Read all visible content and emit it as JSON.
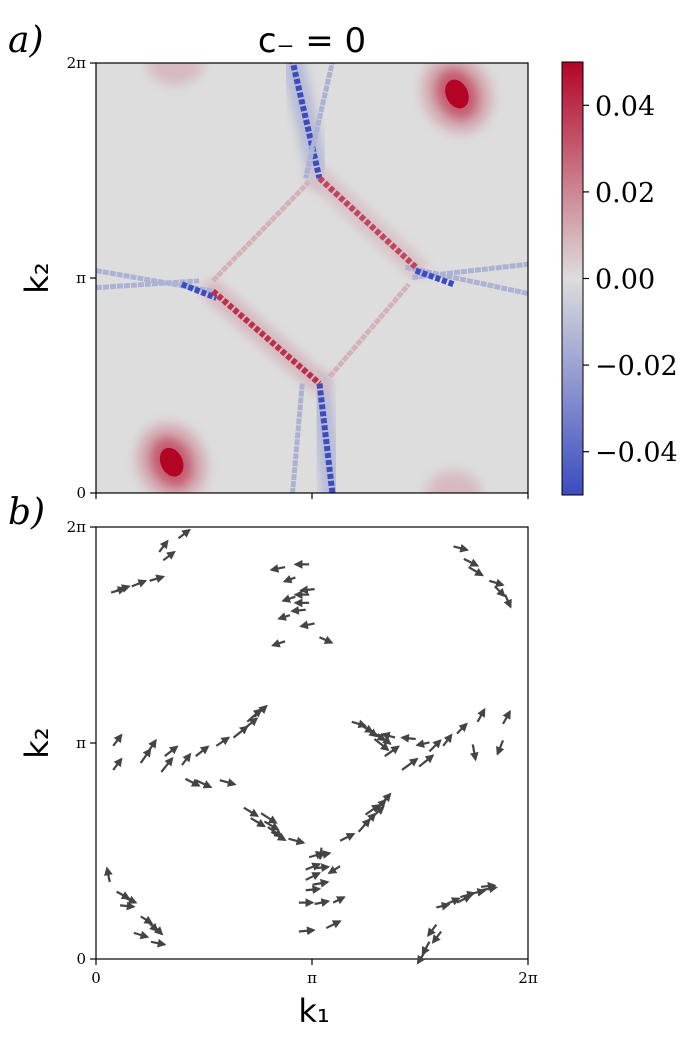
{
  "figure": {
    "panel_a_label": "a)",
    "panel_b_label": "b)"
  },
  "chart_data": [
    {
      "type": "heatmap",
      "panel": "a)",
      "title": "c₋ = 0",
      "xlabel": "",
      "ylabel": "k₂",
      "xlim": [
        0,
        6.2832
      ],
      "ylim": [
        0,
        6.2832
      ],
      "xticks": [
        {
          "value": 0,
          "label": ""
        },
        {
          "value": 3.1416,
          "label": ""
        },
        {
          "value": 6.2832,
          "label": ""
        }
      ],
      "yticks": [
        {
          "value": 0,
          "label": "0"
        },
        {
          "value": 3.1416,
          "label": "π"
        },
        {
          "value": 6.2832,
          "label": "2π"
        }
      ],
      "colormap": "coolwarm",
      "background_value": 0.0,
      "color_range": [
        -0.05,
        0.05
      ],
      "colorbar": {
        "ticks": [
          {
            "value": 0.04,
            "label": "0.04"
          },
          {
            "value": 0.02,
            "label": "0.02"
          },
          {
            "value": 0.0,
            "label": "0.00"
          },
          {
            "value": -0.02,
            "label": "−0.02"
          },
          {
            "value": -0.04,
            "label": "−0.04"
          }
        ],
        "colors": {
          "max": "#b40426",
          "mid": "#dddddd",
          "min": "#3b4cc0"
        }
      },
      "features": {
        "hotspots": [
          {
            "k1": 1.1,
            "k2": 0.45,
            "value": 0.05
          },
          {
            "k1": 5.25,
            "k2": 5.83,
            "value": 0.05
          },
          {
            "k1": 1.15,
            "k2": 6.28,
            "value": 0.008
          },
          {
            "k1": 5.2,
            "k2": 0.0,
            "value": 0.008
          }
        ],
        "lines": [
          {
            "from": [
              2.85,
              6.35
            ],
            "to": [
              3.25,
              4.6
            ],
            "value": -0.05,
            "halo": -0.012
          },
          {
            "from": [
              3.45,
              6.35
            ],
            "to": [
              3.05,
              4.6
            ],
            "value": -0.015
          },
          {
            "from": [
              3.25,
              1.6
            ],
            "to": [
              3.45,
              -0.1
            ],
            "value": -0.05,
            "halo": -0.012
          },
          {
            "from": [
              3.0,
              1.6
            ],
            "to": [
              2.85,
              -0.1
            ],
            "value": -0.015
          },
          {
            "from": [
              0.0,
              3.25
            ],
            "to": [
              1.7,
              2.95
            ],
            "value": -0.015
          },
          {
            "from": [
              0.0,
              3.0
            ],
            "to": [
              1.5,
              3.1
            ],
            "value": -0.015
          },
          {
            "from": [
              1.25,
              3.05
            ],
            "to": [
              1.75,
              2.85
            ],
            "value": -0.05
          },
          {
            "from": [
              4.5,
              3.3
            ],
            "to": [
              6.35,
              2.9
            ],
            "value": -0.015
          },
          {
            "from": [
              4.6,
              3.15
            ],
            "to": [
              6.35,
              3.35
            ],
            "value": -0.015
          },
          {
            "from": [
              4.65,
              3.25
            ],
            "to": [
              5.2,
              3.05
            ],
            "value": -0.05
          },
          {
            "from": [
              1.7,
              2.95
            ],
            "to": [
              3.25,
              1.6
            ],
            "value": 0.04,
            "halo": 0.008
          },
          {
            "from": [
              3.25,
              4.6
            ],
            "to": [
              4.65,
              3.3
            ],
            "value": 0.035,
            "halo": 0.006
          },
          {
            "from": [
              1.7,
              3.1
            ],
            "to": [
              3.1,
              4.55
            ],
            "value": 0.01
          },
          {
            "from": [
              3.4,
              1.7
            ],
            "to": [
              4.55,
              3.05
            ],
            "value": 0.01
          }
        ]
      }
    },
    {
      "type": "quiver",
      "panel": "b)",
      "xlabel": "k₁",
      "ylabel": "k₂",
      "xlim": [
        0,
        6.2832
      ],
      "ylim": [
        0,
        6.2832
      ],
      "xticks": [
        {
          "value": 0,
          "label": "0"
        },
        {
          "value": 3.1416,
          "label": "π"
        },
        {
          "value": 6.2832,
          "label": "2π"
        }
      ],
      "yticks": [
        {
          "value": 0,
          "label": "0"
        },
        {
          "value": 3.1416,
          "label": "π"
        },
        {
          "value": 6.2832,
          "label": "2π"
        }
      ],
      "arrow_color": "#444444",
      "arrows": [
        {
          "x": 1.2,
          "y": 6.12,
          "dx": 0.16,
          "dy": 0.12
        },
        {
          "x": 0.92,
          "y": 5.92,
          "dx": 0.12,
          "dy": 0.16
        },
        {
          "x": 0.98,
          "y": 5.8,
          "dx": 0.16,
          "dy": 0.12
        },
        {
          "x": 0.78,
          "y": 5.5,
          "dx": 0.2,
          "dy": 0.06
        },
        {
          "x": 0.52,
          "y": 5.42,
          "dx": 0.2,
          "dy": 0.08
        },
        {
          "x": 0.22,
          "y": 5.33,
          "dx": 0.2,
          "dy": 0.06
        },
        {
          "x": 0.3,
          "y": 5.36,
          "dx": 0.18,
          "dy": 0.06
        },
        {
          "x": 2.75,
          "y": 5.7,
          "dx": -0.2,
          "dy": -0.04
        },
        {
          "x": 3.1,
          "y": 5.74,
          "dx": -0.2,
          "dy": 0.0
        },
        {
          "x": 2.9,
          "y": 5.55,
          "dx": -0.16,
          "dy": -0.06
        },
        {
          "x": 2.9,
          "y": 5.27,
          "dx": -0.18,
          "dy": -0.06
        },
        {
          "x": 3.1,
          "y": 5.3,
          "dx": -0.2,
          "dy": 0.0
        },
        {
          "x": 3.1,
          "y": 5.18,
          "dx": -0.2,
          "dy": 0.0
        },
        {
          "x": 3.18,
          "y": 5.38,
          "dx": -0.2,
          "dy": -0.02
        },
        {
          "x": 3.05,
          "y": 5.08,
          "dx": -0.2,
          "dy": -0.02
        },
        {
          "x": 2.82,
          "y": 5.0,
          "dx": -0.16,
          "dy": -0.05
        },
        {
          "x": 3.18,
          "y": 4.88,
          "dx": -0.2,
          "dy": -0.04
        },
        {
          "x": 2.75,
          "y": 4.62,
          "dx": -0.18,
          "dy": -0.06
        },
        {
          "x": 3.25,
          "y": 4.68,
          "dx": 0.18,
          "dy": -0.08
        },
        {
          "x": 5.2,
          "y": 6.0,
          "dx": 0.2,
          "dy": -0.05
        },
        {
          "x": 5.35,
          "y": 5.82,
          "dx": 0.2,
          "dy": -0.1
        },
        {
          "x": 5.42,
          "y": 5.7,
          "dx": 0.2,
          "dy": -0.12
        },
        {
          "x": 5.72,
          "y": 5.5,
          "dx": 0.2,
          "dy": -0.06
        },
        {
          "x": 5.8,
          "y": 5.42,
          "dx": 0.14,
          "dy": -0.14
        },
        {
          "x": 5.95,
          "y": 5.3,
          "dx": 0.08,
          "dy": -0.18
        },
        {
          "x": 2.3,
          "y": 3.52,
          "dx": 0.18,
          "dy": 0.16
        },
        {
          "x": 2.2,
          "y": 3.45,
          "dx": 0.2,
          "dy": 0.18
        },
        {
          "x": 2.12,
          "y": 3.32,
          "dx": 0.22,
          "dy": 0.18
        },
        {
          "x": 2.0,
          "y": 3.22,
          "dx": 0.2,
          "dy": 0.16
        },
        {
          "x": 1.75,
          "y": 3.1,
          "dx": 0.18,
          "dy": 0.12
        },
        {
          "x": 1.45,
          "y": 2.95,
          "dx": 0.18,
          "dy": 0.14
        },
        {
          "x": 1.25,
          "y": 2.82,
          "dx": 0.12,
          "dy": 0.16
        },
        {
          "x": 0.95,
          "y": 2.72,
          "dx": 0.16,
          "dy": 0.2
        },
        {
          "x": 1.0,
          "y": 2.95,
          "dx": 0.18,
          "dy": 0.14
        },
        {
          "x": 0.65,
          "y": 2.85,
          "dx": 0.14,
          "dy": 0.2
        },
        {
          "x": 0.75,
          "y": 3.0,
          "dx": 0.12,
          "dy": 0.18
        },
        {
          "x": 0.25,
          "y": 3.1,
          "dx": 0.12,
          "dy": 0.16
        },
        {
          "x": 0.25,
          "y": 2.75,
          "dx": 0.12,
          "dy": 0.16
        },
        {
          "x": 3.72,
          "y": 3.45,
          "dx": 0.2,
          "dy": -0.06
        },
        {
          "x": 3.82,
          "y": 3.42,
          "dx": 0.2,
          "dy": -0.12
        },
        {
          "x": 3.9,
          "y": 3.38,
          "dx": 0.18,
          "dy": -0.14
        },
        {
          "x": 4.0,
          "y": 3.32,
          "dx": 0.2,
          "dy": -0.14
        },
        {
          "x": 4.1,
          "y": 3.27,
          "dx": 0.18,
          "dy": -0.14
        },
        {
          "x": 4.05,
          "y": 3.2,
          "dx": 0.2,
          "dy": -0.16
        },
        {
          "x": 4.35,
          "y": 3.22,
          "dx": -0.18,
          "dy": 0.05
        },
        {
          "x": 4.65,
          "y": 3.2,
          "dx": -0.2,
          "dy": 0.02
        },
        {
          "x": 4.85,
          "y": 3.15,
          "dx": -0.18,
          "dy": -0.04
        },
        {
          "x": 4.85,
          "y": 3.02,
          "dx": 0.16,
          "dy": 0.16
        },
        {
          "x": 5.05,
          "y": 3.1,
          "dx": 0.12,
          "dy": 0.16
        },
        {
          "x": 5.25,
          "y": 3.28,
          "dx": 0.14,
          "dy": 0.14
        },
        {
          "x": 5.55,
          "y": 3.45,
          "dx": 0.1,
          "dy": 0.18
        },
        {
          "x": 5.48,
          "y": 3.12,
          "dx": 0.04,
          "dy": -0.22
        },
        {
          "x": 5.92,
          "y": 3.18,
          "dx": -0.08,
          "dy": -0.2
        },
        {
          "x": 5.92,
          "y": 3.42,
          "dx": 0.1,
          "dy": 0.18
        },
        {
          "x": 4.7,
          "y": 2.8,
          "dx": 0.2,
          "dy": 0.16
        },
        {
          "x": 4.45,
          "y": 2.75,
          "dx": 0.22,
          "dy": 0.16
        },
        {
          "x": 4.2,
          "y": 2.95,
          "dx": 0.2,
          "dy": 0.14
        },
        {
          "x": 2.25,
          "y": 2.05,
          "dx": 0.2,
          "dy": -0.12
        },
        {
          "x": 2.4,
          "y": 2.12,
          "dx": 0.22,
          "dy": -0.14
        },
        {
          "x": 2.45,
          "y": 2.0,
          "dx": 0.2,
          "dy": -0.12
        },
        {
          "x": 2.5,
          "y": 1.92,
          "dx": 0.2,
          "dy": -0.14
        },
        {
          "x": 2.55,
          "y": 1.85,
          "dx": 0.2,
          "dy": -0.12
        },
        {
          "x": 2.15,
          "y": 2.2,
          "dx": 0.2,
          "dy": -0.12
        },
        {
          "x": 1.3,
          "y": 2.62,
          "dx": 0.2,
          "dy": -0.1
        },
        {
          "x": 1.45,
          "y": 2.6,
          "dx": 0.22,
          "dy": -0.1
        },
        {
          "x": 1.8,
          "y": 2.6,
          "dx": 0.22,
          "dy": -0.06
        },
        {
          "x": 3.82,
          "y": 1.85,
          "dx": 0.16,
          "dy": 0.18
        },
        {
          "x": 3.9,
          "y": 1.95,
          "dx": 0.16,
          "dy": 0.16
        },
        {
          "x": 4.0,
          "y": 2.05,
          "dx": 0.18,
          "dy": 0.16
        },
        {
          "x": 4.05,
          "y": 2.15,
          "dx": 0.16,
          "dy": 0.16
        },
        {
          "x": 4.12,
          "y": 2.22,
          "dx": 0.16,
          "dy": 0.18
        },
        {
          "x": 3.92,
          "y": 2.1,
          "dx": 0.2,
          "dy": 0.14
        },
        {
          "x": 2.8,
          "y": 1.75,
          "dx": 0.22,
          "dy": -0.06
        },
        {
          "x": 3.55,
          "y": 1.72,
          "dx": 0.2,
          "dy": 0.1
        },
        {
          "x": 3.1,
          "y": 1.48,
          "dx": 0.2,
          "dy": 0.06
        },
        {
          "x": 3.2,
          "y": 1.5,
          "dx": 0.2,
          "dy": 0.04
        },
        {
          "x": 3.05,
          "y": 1.3,
          "dx": 0.2,
          "dy": 0.08
        },
        {
          "x": 3.18,
          "y": 1.32,
          "dx": 0.2,
          "dy": 0.02
        },
        {
          "x": 3.05,
          "y": 1.15,
          "dx": 0.2,
          "dy": 0.1
        },
        {
          "x": 3.15,
          "y": 1.08,
          "dx": 0.22,
          "dy": 0.04
        },
        {
          "x": 3.05,
          "y": 1.0,
          "dx": 0.2,
          "dy": 0.02
        },
        {
          "x": 2.95,
          "y": 0.82,
          "dx": 0.2,
          "dy": 0.0
        },
        {
          "x": 3.18,
          "y": 0.8,
          "dx": 0.2,
          "dy": 0.04
        },
        {
          "x": 3.45,
          "y": 0.82,
          "dx": 0.16,
          "dy": 0.08
        },
        {
          "x": 3.35,
          "y": 0.45,
          "dx": 0.2,
          "dy": 0.1
        },
        {
          "x": 2.95,
          "y": 0.4,
          "dx": 0.22,
          "dy": 0.02
        },
        {
          "x": 3.55,
          "y": 1.35,
          "dx": -0.16,
          "dy": -0.1
        },
        {
          "x": 3.28,
          "y": 1.62,
          "dx": -0.02,
          "dy": -0.16
        },
        {
          "x": 0.2,
          "y": 1.12,
          "dx": -0.04,
          "dy": 0.2
        },
        {
          "x": 0.3,
          "y": 0.98,
          "dx": 0.18,
          "dy": -0.1
        },
        {
          "x": 0.4,
          "y": 0.9,
          "dx": 0.18,
          "dy": -0.08
        },
        {
          "x": 0.35,
          "y": 0.78,
          "dx": 0.2,
          "dy": -0.02
        },
        {
          "x": 0.65,
          "y": 0.62,
          "dx": 0.16,
          "dy": -0.1
        },
        {
          "x": 0.75,
          "y": 0.55,
          "dx": 0.14,
          "dy": -0.14
        },
        {
          "x": 0.82,
          "y": 0.5,
          "dx": 0.14,
          "dy": -0.14
        },
        {
          "x": 0.55,
          "y": 0.38,
          "dx": 0.2,
          "dy": -0.06
        },
        {
          "x": 0.8,
          "y": 0.25,
          "dx": 0.2,
          "dy": -0.04
        },
        {
          "x": 5.1,
          "y": 0.8,
          "dx": 0.18,
          "dy": 0.08
        },
        {
          "x": 5.3,
          "y": 0.9,
          "dx": 0.2,
          "dy": 0.06
        },
        {
          "x": 5.45,
          "y": 0.95,
          "dx": 0.2,
          "dy": 0.04
        },
        {
          "x": 5.6,
          "y": 1.0,
          "dx": 0.22,
          "dy": 0.04
        },
        {
          "x": 4.95,
          "y": 0.75,
          "dx": 0.18,
          "dy": 0.04
        },
        {
          "x": 5.25,
          "y": 0.82,
          "dx": 0.2,
          "dy": 0.1
        },
        {
          "x": 5.6,
          "y": 1.05,
          "dx": 0.2,
          "dy": 0.02
        },
        {
          "x": 4.95,
          "y": 0.5,
          "dx": -0.12,
          "dy": -0.16
        },
        {
          "x": 5.02,
          "y": 0.4,
          "dx": -0.12,
          "dy": -0.16
        },
        {
          "x": 4.85,
          "y": 0.25,
          "dx": -0.1,
          "dy": -0.18
        },
        {
          "x": 4.78,
          "y": 0.1,
          "dx": -0.1,
          "dy": -0.16
        }
      ]
    }
  ]
}
